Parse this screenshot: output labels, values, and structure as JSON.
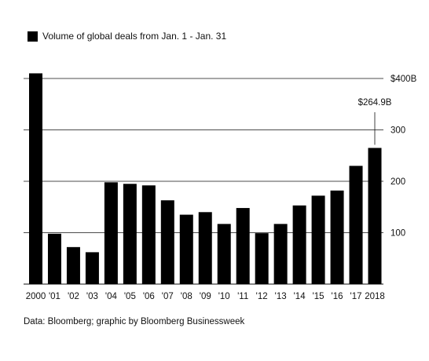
{
  "chart_data": {
    "type": "bar",
    "legend": "Volume of global deals from Jan. 1 - Jan. 31",
    "categories": [
      "2000",
      "'01",
      "'02",
      "'03",
      "'04",
      "'05",
      "'06",
      "'07",
      "'08",
      "'09",
      "'10",
      "'11",
      "'12",
      "'13",
      "'14",
      "'15",
      "'16",
      "'17",
      "2018"
    ],
    "values": [
      410,
      98,
      72,
      62,
      198,
      195,
      192,
      163,
      135,
      140,
      117,
      148,
      99,
      117,
      153,
      172,
      182,
      230,
      264.9
    ],
    "ylim": [
      0,
      400
    ],
    "yticks": [
      100,
      200,
      300,
      400
    ],
    "ytick_labels": [
      "100",
      "200",
      "300",
      "$400B"
    ],
    "annotation": {
      "category": "2018",
      "text": "$264.9B"
    },
    "grid": true,
    "bar_color": "#000000"
  },
  "source": "Data: Bloomberg; graphic by Bloomberg Businessweek"
}
